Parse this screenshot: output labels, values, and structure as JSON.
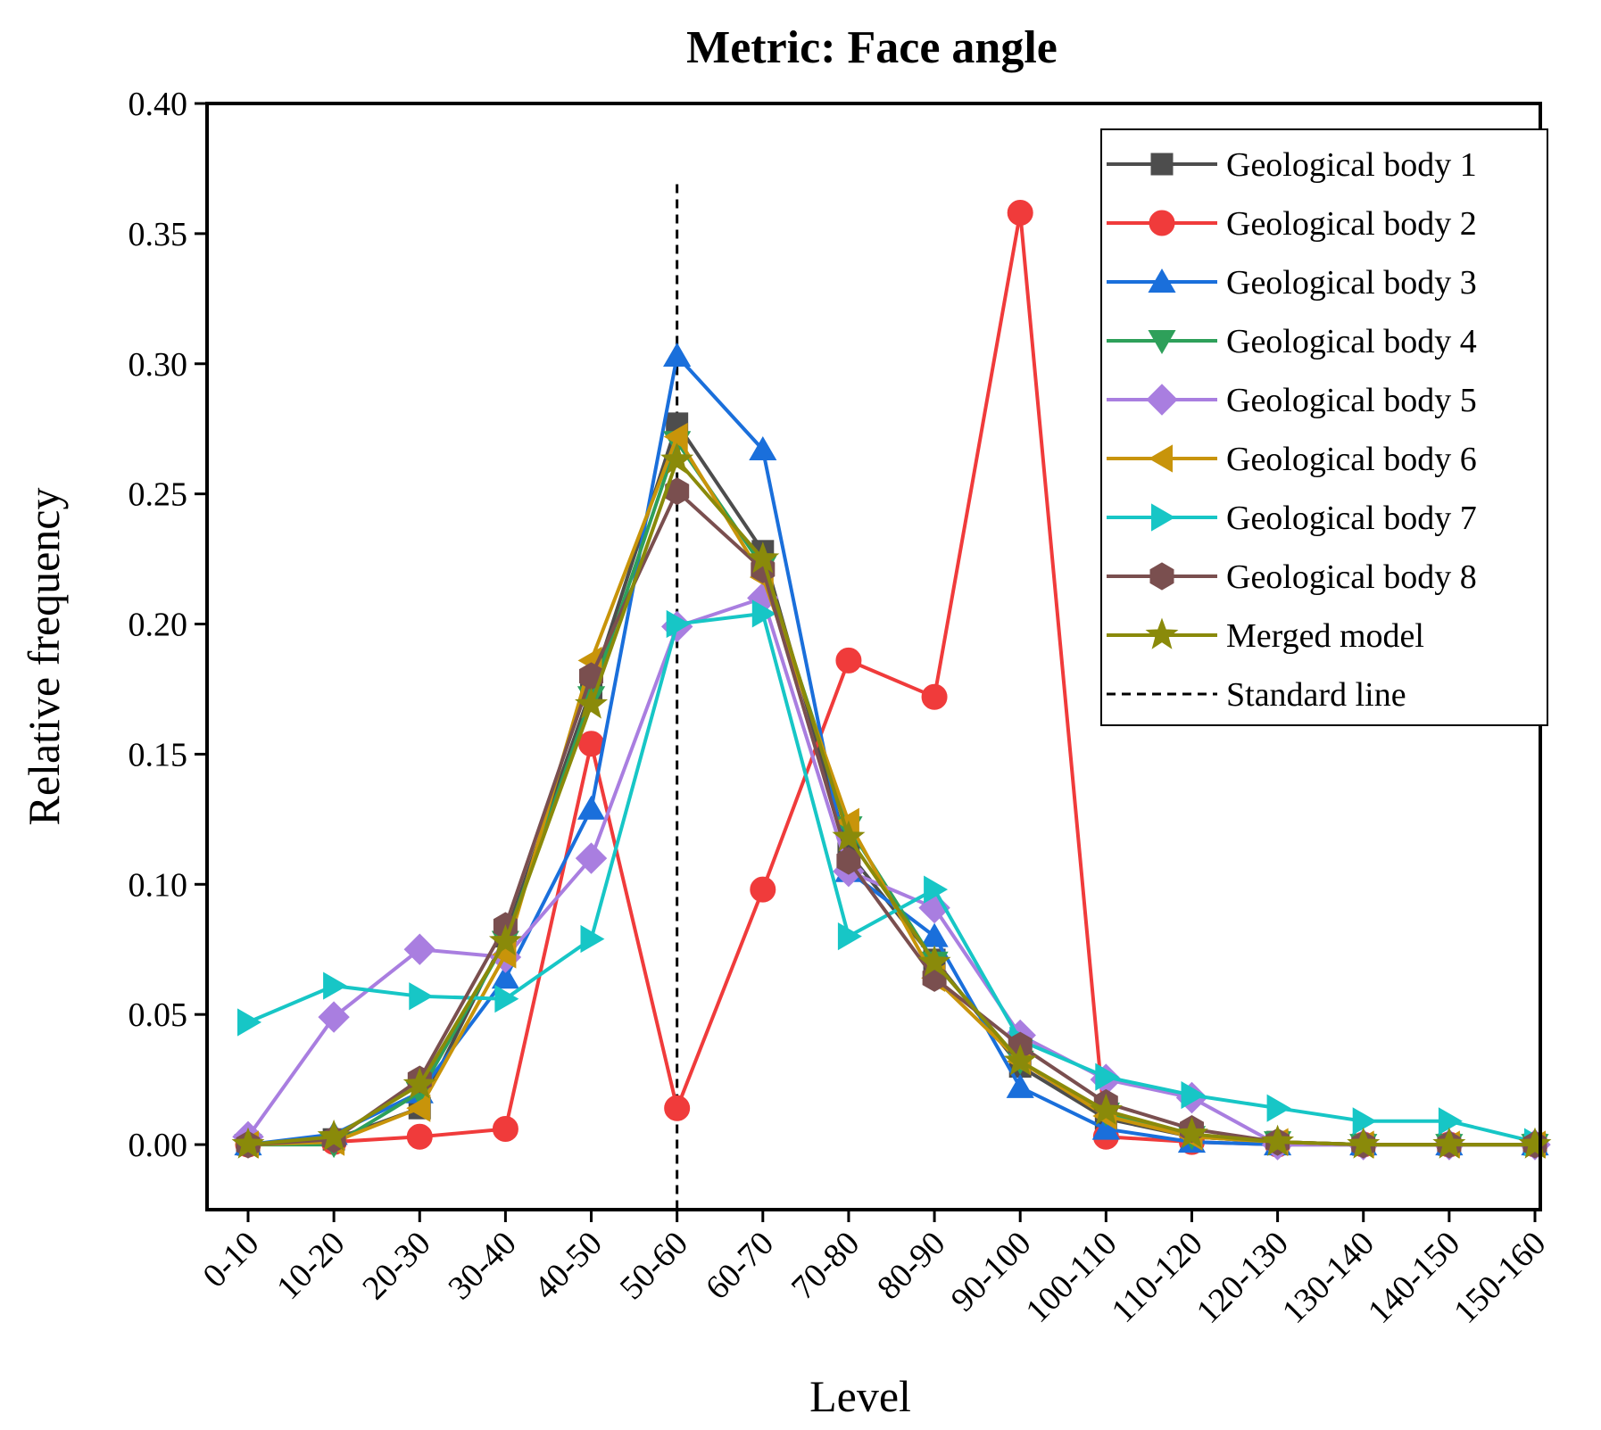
{
  "chart_data": {
    "type": "line",
    "title": "Metric: Face angle",
    "xlabel": "Level",
    "ylabel": "Relative frequency",
    "ylim": [
      -0.025,
      0.4
    ],
    "yticks": [
      0.0,
      0.05,
      0.1,
      0.15,
      0.2,
      0.25,
      0.3,
      0.35,
      0.4
    ],
    "ytick_labels": [
      "0.00",
      "0.05",
      "0.10",
      "0.15",
      "0.20",
      "0.25",
      "0.30",
      "0.35",
      "0.40"
    ],
    "categories": [
      "0-10",
      "10-20",
      "20-30",
      "30-40",
      "40-50",
      "50-60",
      "60-70",
      "70-80",
      "80-90",
      "90-100",
      "100-110",
      "110-120",
      "120-130",
      "130-140",
      "140-150",
      "150-160"
    ],
    "grid": false,
    "legend_position": "top-right",
    "series": [
      {
        "name": "Geological body 1",
        "color": "#4d4d4d",
        "marker": "square",
        "values": [
          0.0,
          0.002,
          0.014,
          0.08,
          0.175,
          0.277,
          0.228,
          0.112,
          0.071,
          0.03,
          0.01,
          0.003,
          0.001,
          0.0,
          0.0,
          0.0
        ]
      },
      {
        "name": "Geological body 2",
        "color": "#f03b3b",
        "marker": "circle",
        "values": [
          0.0,
          0.001,
          0.003,
          0.006,
          0.154,
          0.014,
          0.098,
          0.186,
          0.172,
          0.358,
          0.003,
          0.001,
          0.0,
          0.0,
          0.0,
          0.0
        ]
      },
      {
        "name": "Geological body 3",
        "color": "#1a6fdb",
        "marker": "triangle-up",
        "values": [
          0.0,
          0.004,
          0.02,
          0.064,
          0.129,
          0.303,
          0.267,
          0.105,
          0.08,
          0.022,
          0.006,
          0.001,
          0.0,
          0.0,
          0.0,
          0.0
        ]
      },
      {
        "name": "Geological body 4",
        "color": "#2ea05a",
        "marker": "triangle-down",
        "values": [
          0.0,
          0.0,
          0.02,
          0.078,
          0.172,
          0.27,
          0.222,
          0.122,
          0.07,
          0.032,
          0.012,
          0.003,
          0.001,
          0.0,
          0.0,
          0.0
        ]
      },
      {
        "name": "Geological body 5",
        "color": "#a97ee0",
        "marker": "diamond",
        "values": [
          0.003,
          0.049,
          0.075,
          0.072,
          0.11,
          0.199,
          0.21,
          0.105,
          0.091,
          0.042,
          0.025,
          0.018,
          0.0,
          0.0,
          0.0,
          0.0
        ]
      },
      {
        "name": "Geological body 6",
        "color": "#c8940a",
        "marker": "triangle-left",
        "values": [
          0.0,
          0.001,
          0.014,
          0.073,
          0.186,
          0.272,
          0.218,
          0.124,
          0.064,
          0.032,
          0.011,
          0.003,
          0.001,
          0.0,
          0.0,
          0.0
        ]
      },
      {
        "name": "Geological body 7",
        "color": "#17c6c6",
        "marker": "triangle-right",
        "values": [
          0.047,
          0.061,
          0.057,
          0.056,
          0.079,
          0.2,
          0.204,
          0.08,
          0.098,
          0.04,
          0.026,
          0.019,
          0.014,
          0.009,
          0.009,
          0.001
        ]
      },
      {
        "name": "Geological body 8",
        "color": "#7a4f4f",
        "marker": "hexagon",
        "values": [
          0.0,
          0.002,
          0.025,
          0.084,
          0.18,
          0.251,
          0.221,
          0.109,
          0.064,
          0.038,
          0.016,
          0.006,
          0.001,
          0.0,
          0.0,
          0.0
        ]
      },
      {
        "name": "Merged model",
        "color": "#8a8a0a",
        "marker": "star",
        "values": [
          0.0,
          0.003,
          0.023,
          0.078,
          0.169,
          0.263,
          0.225,
          0.118,
          0.07,
          0.032,
          0.013,
          0.004,
          0.001,
          0.0,
          0.0,
          0.0
        ]
      }
    ],
    "reference_line": {
      "name": "Standard line",
      "x_category": "50-60",
      "y_top": 0.369,
      "style": "dashed",
      "color": "#000000"
    }
  }
}
